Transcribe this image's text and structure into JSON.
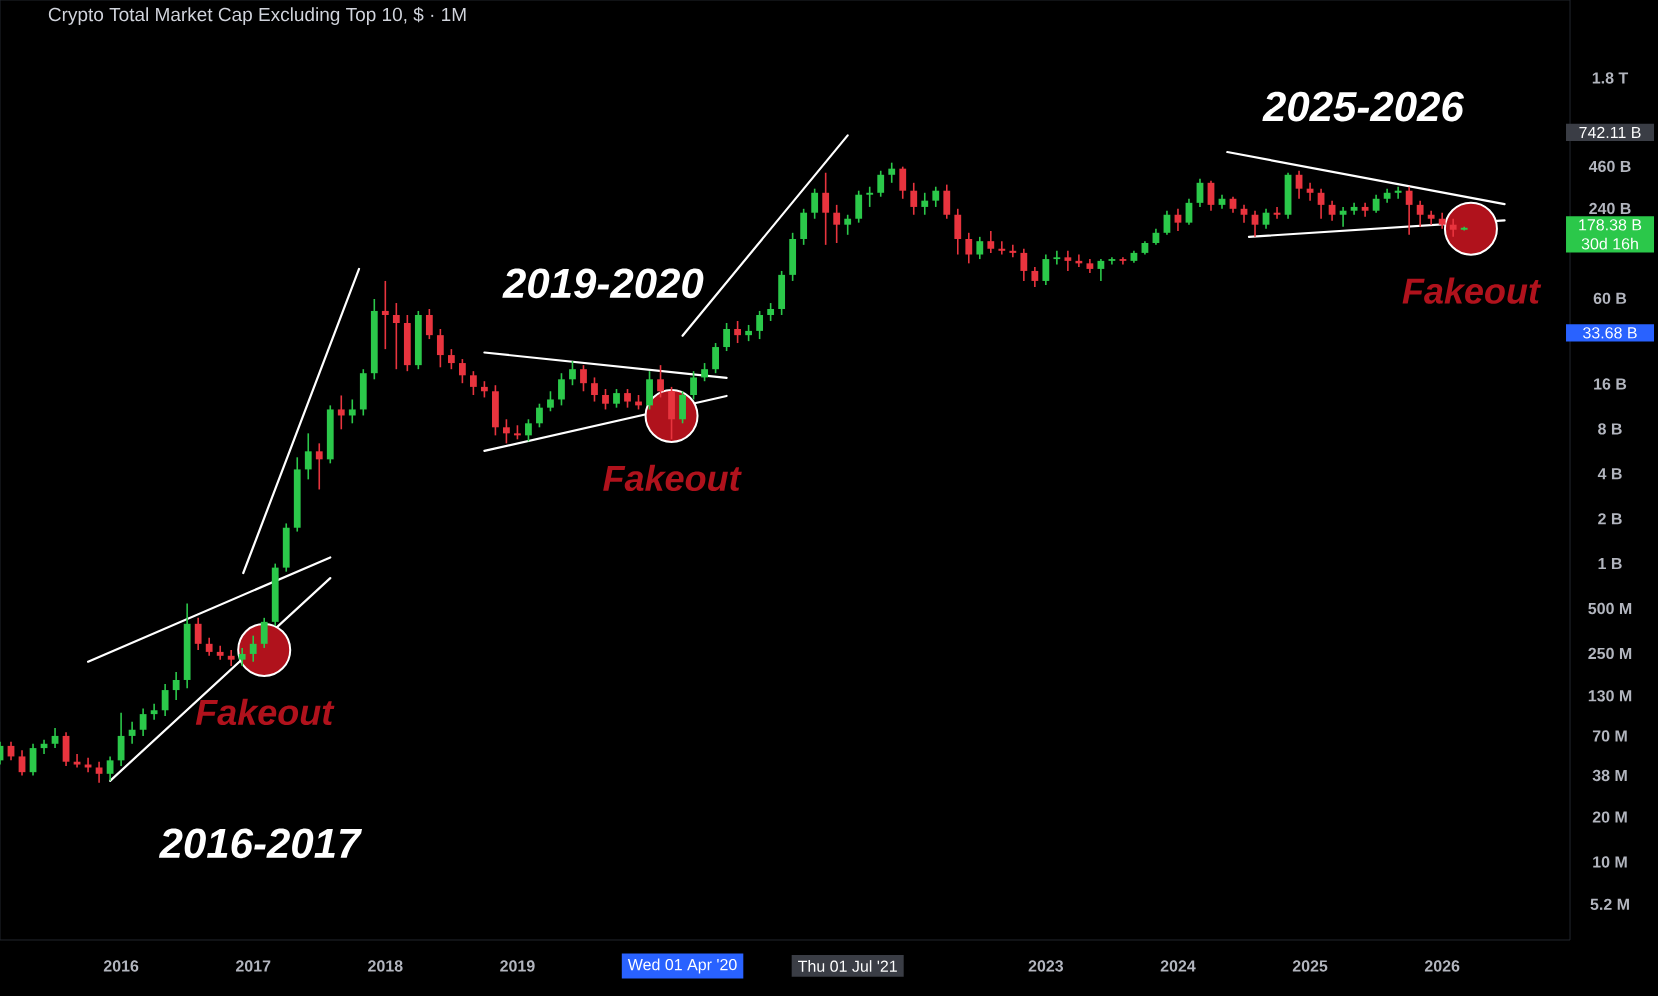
{
  "chart_data": {
    "type": "candlestick",
    "title": "Crypto Total Market Cap Excluding Top 10, $ · 1M",
    "log": true,
    "xlim": [
      "2015-02",
      "2026-12-20"
    ],
    "ylim": [
      3000000.0,
      6000000000000.0
    ],
    "xticks": [
      "2016",
      "2017",
      "2018",
      "2019",
      "2023",
      "2024",
      "2025",
      "2026"
    ],
    "yticks": [
      {
        "value": 5200000.0,
        "label": "5.2 M"
      },
      {
        "value": 10000000.0,
        "label": "10 M"
      },
      {
        "value": 20000000.0,
        "label": "20 M"
      },
      {
        "value": 38000000.0,
        "label": "38 M"
      },
      {
        "value": 70000000.0,
        "label": "70 M"
      },
      {
        "value": 130000000.0,
        "label": "130 M"
      },
      {
        "value": 250000000.0,
        "label": "250 M"
      },
      {
        "value": 500000000.0,
        "label": "500 M"
      },
      {
        "value": 1000000000.0,
        "label": "1 B"
      },
      {
        "value": 2000000000.0,
        "label": "2 B"
      },
      {
        "value": 4000000000.0,
        "label": "4 B"
      },
      {
        "value": 8000000000.0,
        "label": "8 B"
      },
      {
        "value": 16000000000.0,
        "label": "16 B"
      },
      {
        "value": 60000000000.0,
        "label": "60 B"
      },
      {
        "value": 240000000000.0,
        "label": "240 B"
      },
      {
        "value": 460000000000.0,
        "label": "460 B"
      },
      {
        "value": 1800000000000.0,
        "label": "1.8 T"
      }
    ],
    "series": [
      {
        "x": [
          "2015-02",
          "2015-03",
          "2015-04",
          "2015-05",
          "2015-06",
          "2015-07",
          "2015-08",
          "2015-09",
          "2015-10",
          "2015-11",
          "2015-12",
          "2016-01",
          "2016-02",
          "2016-03",
          "2016-04",
          "2016-05",
          "2016-06",
          "2016-07",
          "2016-08",
          "2016-09",
          "2016-10",
          "2016-11",
          "2016-12",
          "2017-01",
          "2017-02",
          "2017-03",
          "2017-04",
          "2017-05",
          "2017-06",
          "2017-07",
          "2017-08",
          "2017-09",
          "2017-10",
          "2017-11",
          "2017-12",
          "2018-01",
          "2018-02",
          "2018-03",
          "2018-04",
          "2018-05",
          "2018-06",
          "2018-07",
          "2018-08",
          "2018-09",
          "2018-10",
          "2018-11",
          "2018-12",
          "2019-01",
          "2019-02",
          "2019-03",
          "2019-04",
          "2019-05",
          "2019-06",
          "2019-07",
          "2019-08",
          "2019-09",
          "2019-10",
          "2019-11",
          "2019-12",
          "2020-01",
          "2020-02",
          "2020-03",
          "2020-04",
          "2020-05",
          "2020-06",
          "2020-07",
          "2020-08",
          "2020-09",
          "2020-10",
          "2020-11",
          "2020-12",
          "2021-01",
          "2021-02",
          "2021-03",
          "2021-04",
          "2021-05",
          "2021-06",
          "2021-07",
          "2021-08",
          "2021-09",
          "2021-10",
          "2021-11",
          "2021-12",
          "2022-01",
          "2022-02",
          "2022-03",
          "2022-04",
          "2022-05",
          "2022-06",
          "2022-07",
          "2022-08",
          "2022-09",
          "2022-10",
          "2022-11",
          "2022-12",
          "2023-01",
          "2023-02",
          "2023-03",
          "2023-04",
          "2023-05",
          "2023-06",
          "2023-07",
          "2023-08",
          "2023-09",
          "2023-10",
          "2023-11",
          "2023-12",
          "2024-01",
          "2024-02",
          "2024-03",
          "2024-04",
          "2024-05",
          "2024-06",
          "2024-07",
          "2024-08",
          "2024-09",
          "2024-10",
          "2024-11",
          "2024-12",
          "2025-01",
          "2025-02",
          "2025-03",
          "2025-04",
          "2025-05",
          "2025-06",
          "2025-07",
          "2025-08",
          "2025-09",
          "2025-10",
          "2025-11",
          "2025-12",
          "2026-01",
          "2026-02",
          "2026-03"
        ],
        "ohlc": [
          [
            48000000.0,
            64000000.0,
            45000000.0,
            60000000.0
          ],
          [
            60000000.0,
            64000000.0,
            48000000.0,
            51000000.0
          ],
          [
            51000000.0,
            56000000.0,
            38000000.0,
            40000000.0
          ],
          [
            40000000.0,
            62000000.0,
            38000000.0,
            58000000.0
          ],
          [
            58000000.0,
            66000000.0,
            53000000.0,
            62000000.0
          ],
          [
            62000000.0,
            79000000.0,
            58000000.0,
            70000000.0
          ],
          [
            70000000.0,
            74000000.0,
            44000000.0,
            47000000.0
          ],
          [
            47000000.0,
            53000000.0,
            43000000.0,
            45000000.0
          ],
          [
            45000000.0,
            50000000.0,
            40000000.0,
            43000000.0
          ],
          [
            43000000.0,
            47000000.0,
            34000000.0,
            39000000.0
          ],
          [
            39000000.0,
            51000000.0,
            35000000.0,
            48000000.0
          ],
          [
            48000000.0,
            100000000.0,
            44000000.0,
            70000000.0
          ],
          [
            70000000.0,
            87000000.0,
            62000000.0,
            77000000.0
          ],
          [
            77000000.0,
            107000000.0,
            70000000.0,
            98000000.0
          ],
          [
            98000000.0,
            115000000.0,
            90000000.0,
            104000000.0
          ],
          [
            104000000.0,
            156000000.0,
            95000000.0,
            142000000.0
          ],
          [
            142000000.0,
            188000000.0,
            122000000.0,
            166000000.0
          ],
          [
            166000000.0,
            540000000.0,
            146000000.0,
            395000000.0
          ],
          [
            395000000.0,
            433000000.0,
            264000000.0,
            290000000.0
          ],
          [
            290000000.0,
            319000000.0,
            241000000.0,
            256000000.0
          ],
          [
            256000000.0,
            282000000.0,
            227000000.0,
            241000000.0
          ],
          [
            241000000.0,
            264000000.0,
            206000000.0,
            227000000.0
          ],
          [
            227000000.0,
            272000000.0,
            206000000.0,
            248000000.0
          ],
          [
            248000000.0,
            329000000.0,
            220000000.0,
            290000000.0
          ],
          [
            290000000.0,
            433000000.0,
            272000000.0,
            407000000.0
          ],
          [
            407000000.0,
            1000000000.0,
            383000000.0,
            940000000.0
          ],
          [
            940000000.0,
            1860000000.0,
            883000000.0,
            1740000000.0
          ],
          [
            1740000000.0,
            5160000000.0,
            1640000000.0,
            4280000000.0
          ],
          [
            4280000000.0,
            7470000000.0,
            3670000000.0,
            5660000000.0
          ],
          [
            5660000000.0,
            6400000000.0,
            3140000000.0,
            5000000000.0
          ],
          [
            5000000000.0,
            11500000000.0,
            4700000000.0,
            10800000000.0
          ],
          [
            10800000000.0,
            13400000000.0,
            7950000000.0,
            9840000000.0
          ],
          [
            9840000000.0,
            12600000000.0,
            8720000000.0,
            10800000000.0
          ],
          [
            10800000000.0,
            20100000000.0,
            9840000000.0,
            18900000000.0
          ],
          [
            18900000000.0,
            59400000000.0,
            17200000000.0,
            49400000000.0
          ],
          [
            49400000000.0,
            78500000000.0,
            27400000000.0,
            46400000000.0
          ],
          [
            46400000000.0,
            55800000000.0,
            20100000000.0,
            41000000000.0
          ],
          [
            41000000000.0,
            46400000000.0,
            19500000000.0,
            21400000000.0
          ],
          [
            21400000000.0,
            49400000000.0,
            20100000000.0,
            46400000000.0
          ],
          [
            46400000000.0,
            50900000000.0,
            32000000000.0,
            34000000000.0
          ],
          [
            34000000000.0,
            37400000000.0,
            20700000000.0,
            25000000000.0
          ],
          [
            25000000000.0,
            27400000000.0,
            20100000000.0,
            22100000000.0
          ],
          [
            22100000000.0,
            23500000000.0,
            16200000000.0,
            18300000000.0
          ],
          [
            18300000000.0,
            19500000000.0,
            13500000000.0,
            15300000000.0
          ],
          [
            15300000000.0,
            16700000000.0,
            13000000000.0,
            14300000000.0
          ],
          [
            14300000000.0,
            15700000000.0,
            7240000000.0,
            8200000000.0
          ],
          [
            8200000000.0,
            9280000000.0,
            6400000000.0,
            7470000000.0
          ],
          [
            7470000000.0,
            8460000000.0,
            6810000000.0,
            7240000000.0
          ],
          [
            7240000000.0,
            9280000000.0,
            6600000000.0,
            8720000000.0
          ],
          [
            8720000000.0,
            11800000000.0,
            8200000000.0,
            11100000000.0
          ],
          [
            11100000000.0,
            14300000000.0,
            10500000000.0,
            12600000000.0
          ],
          [
            12600000000.0,
            18900000000.0,
            11500000000.0,
            17200000000.0
          ],
          [
            17200000000.0,
            22800000000.0,
            15700000000.0,
            20100000000.0
          ],
          [
            20100000000.0,
            21400000000.0,
            14300000000.0,
            16200000000.0
          ],
          [
            16200000000.0,
            17700000000.0,
            12200000000.0,
            13500000000.0
          ],
          [
            13500000000.0,
            14800000000.0,
            10800000000.0,
            11800000000.0
          ],
          [
            11800000000.0,
            14800000000.0,
            11100000000.0,
            13900000000.0
          ],
          [
            13900000000.0,
            14800000000.0,
            11100000000.0,
            12200000000.0
          ],
          [
            12200000000.0,
            13500000000.0,
            10800000000.0,
            11500000000.0
          ],
          [
            11500000000.0,
            19500000000.0,
            10800000000.0,
            17200000000.0
          ],
          [
            17200000000.0,
            21400000000.0,
            13000000000.0,
            14300000000.0
          ],
          [
            14300000000.0,
            15300000000.0,
            6810000000.0,
            9280000000.0
          ],
          [
            9280000000.0,
            14300000000.0,
            8720000000.0,
            13500000000.0
          ],
          [
            13500000000.0,
            19500000000.0,
            12600000000.0,
            17700000000.0
          ],
          [
            17700000000.0,
            22100000000.0,
            16700000000.0,
            20100000000.0
          ],
          [
            20100000000.0,
            30100000000.0,
            18900000000.0,
            28300000000.0
          ],
          [
            28300000000.0,
            41000000000.0,
            26600000000.0,
            37400000000.0
          ],
          [
            37400000000.0,
            42300000000.0,
            30100000000.0,
            34000000000.0
          ],
          [
            34000000000.0,
            39800000000.0,
            31000000000.0,
            36300000000.0
          ],
          [
            36300000000.0,
            49400000000.0,
            32000000000.0,
            46400000000.0
          ],
          [
            46400000000.0,
            55800000000.0,
            42300000000.0,
            50900000000.0
          ],
          [
            50900000000.0,
            91600000000.0,
            46400000000.0,
            86200000000.0
          ],
          [
            86200000000.0,
            165000000000.0,
            78500000000.0,
            150000000000.0
          ],
          [
            150000000000.0,
            239000000000.0,
            137000000000.0,
            225000000000.0
          ],
          [
            225000000000.0,
            326000000000.0,
            205000000000.0,
            306000000000.0
          ],
          [
            306000000000.0,
            417000000000.0,
            137000000000.0,
            225000000000.0
          ],
          [
            225000000000.0,
            254000000000.0,
            141000000000.0,
            187000000000.0
          ],
          [
            187000000000.0,
            218000000000.0,
            160000000000.0,
            205000000000.0
          ],
          [
            205000000000.0,
            316000000000.0,
            193000000000.0,
            297000000000.0
          ],
          [
            297000000000.0,
            336000000000.0,
            246000000000.0,
            306000000000.0
          ],
          [
            306000000000.0,
            430000000000.0,
            288000000000.0,
            404000000000.0
          ],
          [
            404000000000.0,
            487000000000.0,
            357000000000.0,
            444000000000.0
          ],
          [
            444000000000.0,
            458000000000.0,
            279000000000.0,
            316000000000.0
          ],
          [
            316000000000.0,
            357000000000.0,
            218000000000.0,
            246000000000.0
          ],
          [
            246000000000.0,
            306000000000.0,
            218000000000.0,
            271000000000.0
          ],
          [
            271000000000.0,
            336000000000.0,
            246000000000.0,
            316000000000.0
          ],
          [
            316000000000.0,
            347000000000.0,
            205000000000.0,
            218000000000.0
          ],
          [
            218000000000.0,
            239000000000.0,
            118000000000.0,
            150000000000.0
          ],
          [
            150000000000.0,
            165000000000.0,
            103000000000.0,
            118000000000.0
          ],
          [
            118000000000.0,
            155000000000.0,
            110000000000.0,
            145000000000.0
          ],
          [
            145000000000.0,
            170000000000.0,
            121000000000.0,
            129000000000.0
          ],
          [
            129000000000.0,
            145000000000.0,
            118000000000.0,
            125000000000.0
          ],
          [
            125000000000.0,
            137000000000.0,
            113000000000.0,
            121000000000.0
          ],
          [
            121000000000.0,
            129000000000.0,
            78500000000.0,
            91600000000.0
          ],
          [
            91600000000.0,
            97500000000.0,
            71600000000.0,
            78500000000.0
          ],
          [
            78500000000.0,
            118000000000.0,
            73800000000.0,
            110000000000.0
          ],
          [
            110000000000.0,
            125000000000.0,
            101000000000.0,
            113000000000.0
          ],
          [
            113000000000.0,
            125000000000.0,
            91600000000.0,
            107000000000.0
          ],
          [
            107000000000.0,
            118000000000.0,
            97500000000.0,
            103000000000.0
          ],
          [
            103000000000.0,
            110000000000.0,
            88800000000.0,
            94500000000.0
          ],
          [
            94500000000.0,
            110000000000.0,
            78500000000.0,
            107000000000.0
          ],
          [
            107000000000.0,
            113000000000.0,
            101000000000.0,
            110000000000.0
          ],
          [
            110000000000.0,
            113000000000.0,
            101000000000.0,
            107000000000.0
          ],
          [
            107000000000.0,
            125000000000.0,
            104000000000.0,
            121000000000.0
          ],
          [
            121000000000.0,
            145000000000.0,
            118000000000.0,
            141000000000.0
          ],
          [
            141000000000.0,
            176000000000.0,
            137000000000.0,
            165000000000.0
          ],
          [
            165000000000.0,
            232000000000.0,
            160000000000.0,
            218000000000.0
          ],
          [
            218000000000.0,
            239000000000.0,
            170000000000.0,
            193000000000.0
          ],
          [
            193000000000.0,
            279000000000.0,
            187000000000.0,
            262000000000.0
          ],
          [
            262000000000.0,
            380000000000.0,
            246000000000.0,
            357000000000.0
          ],
          [
            357000000000.0,
            368000000000.0,
            232000000000.0,
            254000000000.0
          ],
          [
            254000000000.0,
            297000000000.0,
            239000000000.0,
            279000000000.0
          ],
          [
            279000000000.0,
            288000000000.0,
            225000000000.0,
            239000000000.0
          ],
          [
            239000000000.0,
            254000000000.0,
            193000000000.0,
            218000000000.0
          ],
          [
            218000000000.0,
            232000000000.0,
            155000000000.0,
            187000000000.0
          ],
          [
            187000000000.0,
            239000000000.0,
            176000000000.0,
            225000000000.0
          ],
          [
            225000000000.0,
            246000000000.0,
            205000000000.0,
            218000000000.0
          ],
          [
            218000000000.0,
            417000000000.0,
            205000000000.0,
            404000000000.0
          ],
          [
            404000000000.0,
            430000000000.0,
            279000000000.0,
            326000000000.0
          ],
          [
            326000000000.0,
            357000000000.0,
            271000000000.0,
            306000000000.0
          ],
          [
            306000000000.0,
            326000000000.0,
            205000000000.0,
            254000000000.0
          ],
          [
            254000000000.0,
            271000000000.0,
            199000000000.0,
            218000000000.0
          ],
          [
            218000000000.0,
            246000000000.0,
            181000000000.0,
            232000000000.0
          ],
          [
            232000000000.0,
            262000000000.0,
            218000000000.0,
            246000000000.0
          ],
          [
            246000000000.0,
            262000000000.0,
            211000000000.0,
            232000000000.0
          ],
          [
            232000000000.0,
            297000000000.0,
            225000000000.0,
            279000000000.0
          ],
          [
            279000000000.0,
            326000000000.0,
            262000000000.0,
            306000000000.0
          ],
          [
            306000000000.0,
            336000000000.0,
            279000000000.0,
            316000000000.0
          ],
          [
            316000000000.0,
            336000000000.0,
            160000000000.0,
            254000000000.0
          ],
          [
            254000000000.0,
            271000000000.0,
            181000000000.0,
            218000000000.0
          ],
          [
            218000000000.0,
            232000000000.0,
            187000000000.0,
            205000000000.0
          ],
          [
            205000000000.0,
            225000000000.0,
            176000000000.0,
            187000000000.0
          ],
          [
            187000000000.0,
            205000000000.0,
            155000000000.0,
            173000000000.0
          ],
          [
            173000000000.0,
            181000000000.0,
            171000000000.0,
            178380000000.0
          ]
        ],
        "colors": [
          "#2bc84a",
          "#e8343e",
          "#e8343e",
          "#2bc84a",
          "#2bc84a",
          "#2bc84a",
          "#e8343e",
          "#e8343e",
          "#e8343e",
          "#e8343e",
          "#2bc84a",
          "#2bc84a",
          "#2bc84a",
          "#2bc84a",
          "#2bc84a",
          "#2bc84a",
          "#2bc84a",
          "#2bc84a",
          "#e8343e",
          "#e8343e",
          "#e8343e",
          "#e8343e",
          "#2bc84a",
          "#2bc84a",
          "#2bc84a",
          "#2bc84a",
          "#2bc84a",
          "#2bc84a",
          "#2bc84a",
          "#e8343e",
          "#2bc84a",
          "#e8343e",
          "#2bc84a",
          "#2bc84a",
          "#2bc84a",
          "#e8343e",
          "#e8343e",
          "#e8343e",
          "#2bc84a",
          "#e8343e",
          "#e8343e",
          "#e8343e",
          "#e8343e",
          "#e8343e",
          "#e8343e",
          "#e8343e",
          "#e8343e",
          "#e8343e",
          "#2bc84a",
          "#2bc84a",
          "#2bc84a",
          "#2bc84a",
          "#2bc84a",
          "#e8343e",
          "#e8343e",
          "#e8343e",
          "#2bc84a",
          "#e8343e",
          "#e8343e",
          "#2bc84a",
          "#e8343e",
          "#e8343e",
          "#2bc84a",
          "#2bc84a",
          "#2bc84a",
          "#2bc84a",
          "#2bc84a",
          "#e8343e",
          "#2bc84a",
          "#2bc84a",
          "#2bc84a",
          "#2bc84a",
          "#2bc84a",
          "#2bc84a",
          "#2bc84a",
          "#e8343e",
          "#e8343e",
          "#2bc84a",
          "#2bc84a",
          "#2bc84a",
          "#2bc84a",
          "#2bc84a",
          "#e8343e",
          "#e8343e",
          "#2bc84a",
          "#2bc84a",
          "#e8343e",
          "#e8343e",
          "#e8343e",
          "#2bc84a",
          "#e8343e",
          "#e8343e",
          "#e8343e",
          "#e8343e",
          "#e8343e",
          "#2bc84a",
          "#2bc84a",
          "#e8343e",
          "#e8343e",
          "#e8343e",
          "#2bc84a",
          "#2bc84a",
          "#e8343e",
          "#2bc84a",
          "#2bc84a",
          "#2bc84a",
          "#2bc84a",
          "#e8343e",
          "#2bc84a",
          "#2bc84a",
          "#e8343e",
          "#2bc84a",
          "#e8343e",
          "#e8343e",
          "#e8343e",
          "#2bc84a",
          "#e8343e",
          "#2bc84a",
          "#e8343e",
          "#e8343e",
          "#e8343e",
          "#e8343e",
          "#2bc84a",
          "#2bc84a",
          "#e8343e",
          "#2bc84a",
          "#2bc84a",
          "#2bc84a",
          "#e8343e",
          "#e8343e",
          "#e8343e",
          "#e8343e",
          "#e8343e",
          "#2bc84a"
        ]
      },
      {
        "type": "line",
        "color": "#ffffff",
        "x": [
          "2015-10",
          "2017-08"
        ],
        "values": [
          220000000.0,
          1100000000.0
        ]
      },
      {
        "type": "line",
        "color": "#ffffff",
        "x": [
          "2015-12",
          "2017-08"
        ],
        "values": [
          35000000.0,
          800000000.0
        ]
      },
      {
        "type": "line",
        "color": "#ffffff",
        "x": [
          "2016-12-04",
          "2017-10-20"
        ],
        "values": [
          865000000.0,
          94500000000.0
        ]
      },
      {
        "type": "line",
        "color": "#ffffff",
        "x": [
          "2018-10",
          "2020-08"
        ],
        "values": [
          26000000000.0,
          17600000000.0
        ]
      },
      {
        "type": "line",
        "color": "#ffffff",
        "x": [
          "2018-10",
          "2020-08"
        ],
        "values": [
          5700000000.0,
          13300000000.0
        ]
      },
      {
        "type": "line",
        "color": "#ffffff",
        "x": [
          "2020-04",
          "2021-07"
        ],
        "values": [
          33680000000.0,
          742110000000.0
        ]
      },
      {
        "type": "line",
        "color": "#ffffff",
        "x": [
          "2024-05-16",
          "2026-06-21"
        ],
        "values": [
          574000000000.0,
          257000000000.0
        ]
      },
      {
        "type": "line",
        "color": "#ffffff",
        "x": [
          "2024-07-15",
          "2026-06-21"
        ],
        "values": [
          155000000000.0,
          200000000000.0
        ]
      },
      {
        "type": "scatter",
        "color": "#b0121c",
        "marker": "circle",
        "x": [
          "2017-02",
          "2020-03",
          "2026-03-20"
        ],
        "values": [
          264000000.0,
          9780000000.0,
          176000000000.0
        ],
        "value_labels": [
          "Fakeout",
          "Fakeout",
          "Fakeout"
        ]
      }
    ],
    "annotations": [
      "2016-2017",
      "2019-2020",
      "2025-2026",
      "742.11 B",
      "178.38 B",
      "30d 16h",
      "33.68 B",
      "Wed 01 Apr '20",
      "Thu 01 Jul '21"
    ]
  }
}
